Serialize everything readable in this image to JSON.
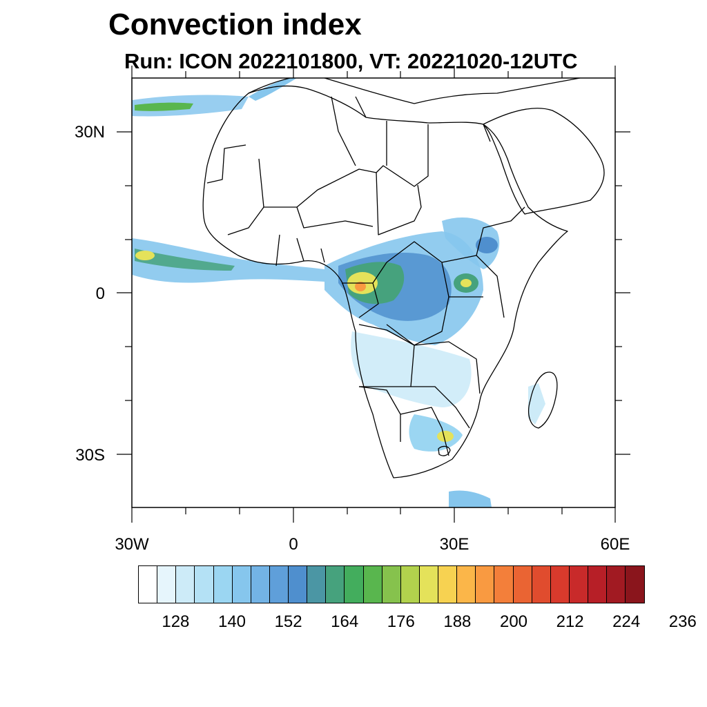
{
  "title": "Convection index",
  "subtitle": "Run: ICON 2022101800,  VT: 20221020-12UTC",
  "map": {
    "projection": "cylindrical equidistant",
    "lon_range": [
      -30,
      60
    ],
    "lat_range": [
      -40,
      40
    ],
    "lat_labels": [
      "30N",
      "0",
      "30S"
    ],
    "lon_labels": [
      "30W",
      "0",
      "30E",
      "60E"
    ]
  },
  "colorbar": {
    "colors": [
      "#ffffff",
      "#e6f5fc",
      "#cdebf8",
      "#b4e1f5",
      "#9bd6f2",
      "#86c6ed",
      "#73b3e5",
      "#5f9fda",
      "#4f8fce",
      "#4b96a4",
      "#46a27d",
      "#43ad5d",
      "#59b64e",
      "#86c24d",
      "#b2d24d",
      "#e4e25a",
      "#f7d251",
      "#fbb649",
      "#f99a41",
      "#f37f3a",
      "#ea6433",
      "#e04c2e",
      "#d83a2c",
      "#c82a2a",
      "#b71f27",
      "#a11a22",
      "#8a151c"
    ],
    "labels": [
      "128",
      "140",
      "152",
      "164",
      "176",
      "188",
      "200",
      "212",
      "224",
      "236"
    ]
  }
}
